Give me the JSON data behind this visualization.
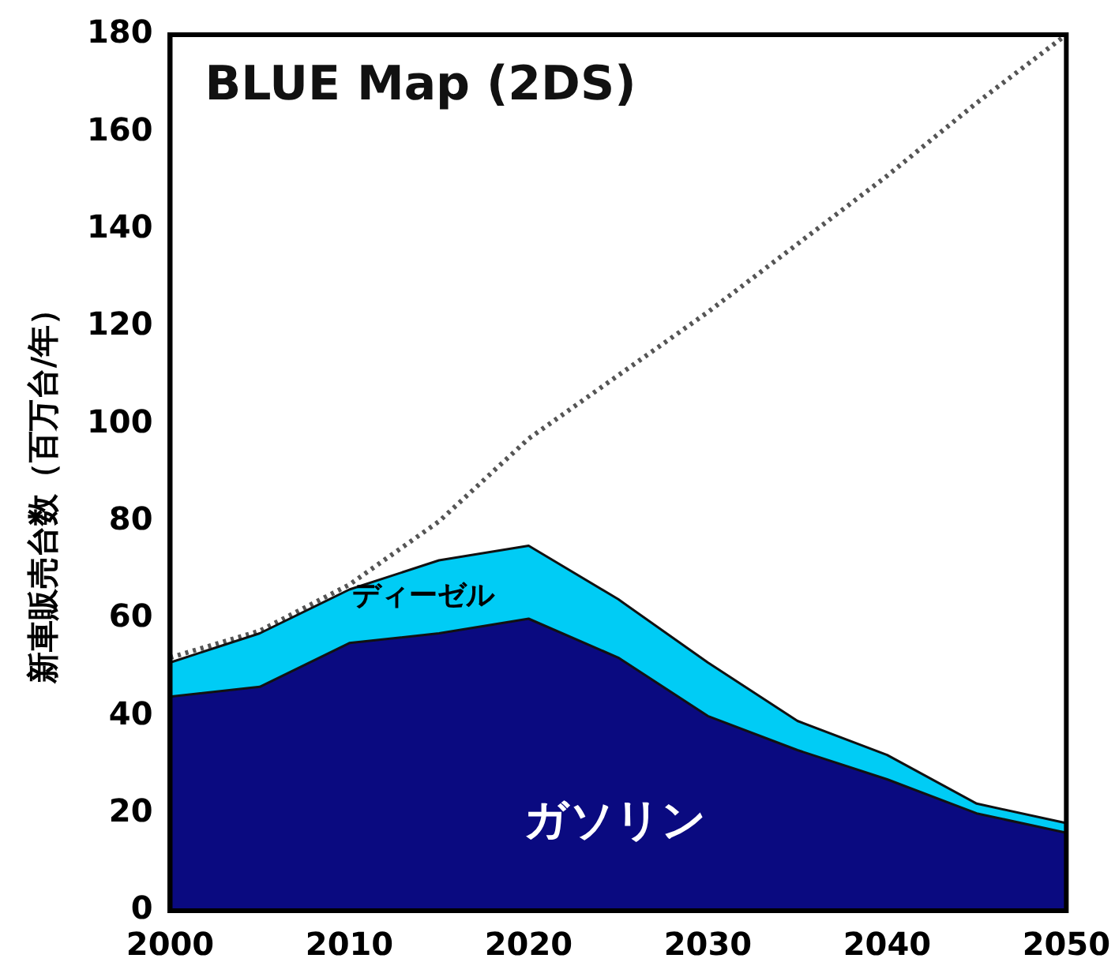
{
  "chart_data": {
    "type": "area",
    "title": "BLUE Map (2DS)",
    "ylabel": "新車販売台数（百万台/年）",
    "stacked": true,
    "x": [
      2000,
      2005,
      2010,
      2015,
      2020,
      2025,
      2030,
      2035,
      2040,
      2045,
      2050
    ],
    "series": [
      {
        "name": "ガソリン",
        "color": "#0a0a80",
        "values": [
          44,
          46,
          55,
          57,
          60,
          52,
          40,
          33,
          27,
          20,
          16
        ]
      },
      {
        "name": "ディーゼル",
        "color": "#00ccf5",
        "values": [
          7,
          11,
          11,
          15,
          15,
          12,
          11,
          6,
          5,
          2,
          2
        ]
      },
      {
        "type": "line",
        "color": "#555555",
        "line_style": "dotted",
        "values": [
          52,
          57.5,
          67,
          80,
          97,
          110,
          123,
          137,
          151,
          166,
          180
        ]
      }
    ],
    "xlim": [
      2000,
      2050
    ],
    "xticks": [
      2000,
      2010,
      2020,
      2030,
      2040,
      2050
    ],
    "ylim": [
      0,
      180
    ],
    "yticks": [
      0,
      20,
      40,
      60,
      80,
      100,
      120,
      140,
      160,
      180
    ],
    "grid": false,
    "legend": false
  }
}
